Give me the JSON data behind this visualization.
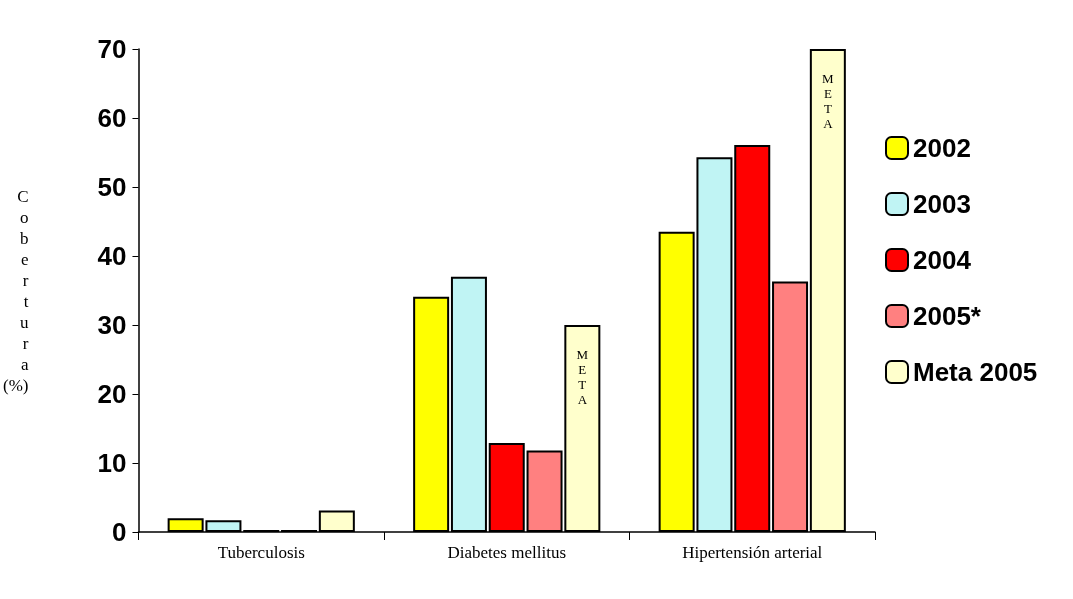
{
  "chart_data": {
    "type": "bar",
    "ylabel": "Cobertura (%)",
    "categories": [
      "Tuberculosis",
      "Diabetes mellitus",
      "Hipertensión arterial"
    ],
    "series": [
      {
        "name": "2002",
        "color": "#ffff00",
        "values": [
          2.0,
          34.1,
          43.5
        ]
      },
      {
        "name": "2003",
        "color": "#c0f4f4",
        "values": [
          1.7,
          37.0,
          54.3
        ]
      },
      {
        "name": "2004",
        "color": "#ff0000",
        "values": [
          0.3,
          12.9,
          56.1
        ]
      },
      {
        "name": "2005*",
        "color": "#ff8080",
        "values": [
          0.3,
          11.8,
          36.3
        ]
      },
      {
        "name": "Meta 2005",
        "color": "#ffffcc",
        "values": [
          3.1,
          30.0,
          70.0
        ]
      }
    ],
    "annotations": [
      "META",
      "META"
    ],
    "ylim": [
      0,
      70
    ],
    "yticks": [
      0,
      10,
      20,
      30,
      40,
      50,
      60,
      70
    ],
    "grid": false,
    "legend": "right"
  }
}
